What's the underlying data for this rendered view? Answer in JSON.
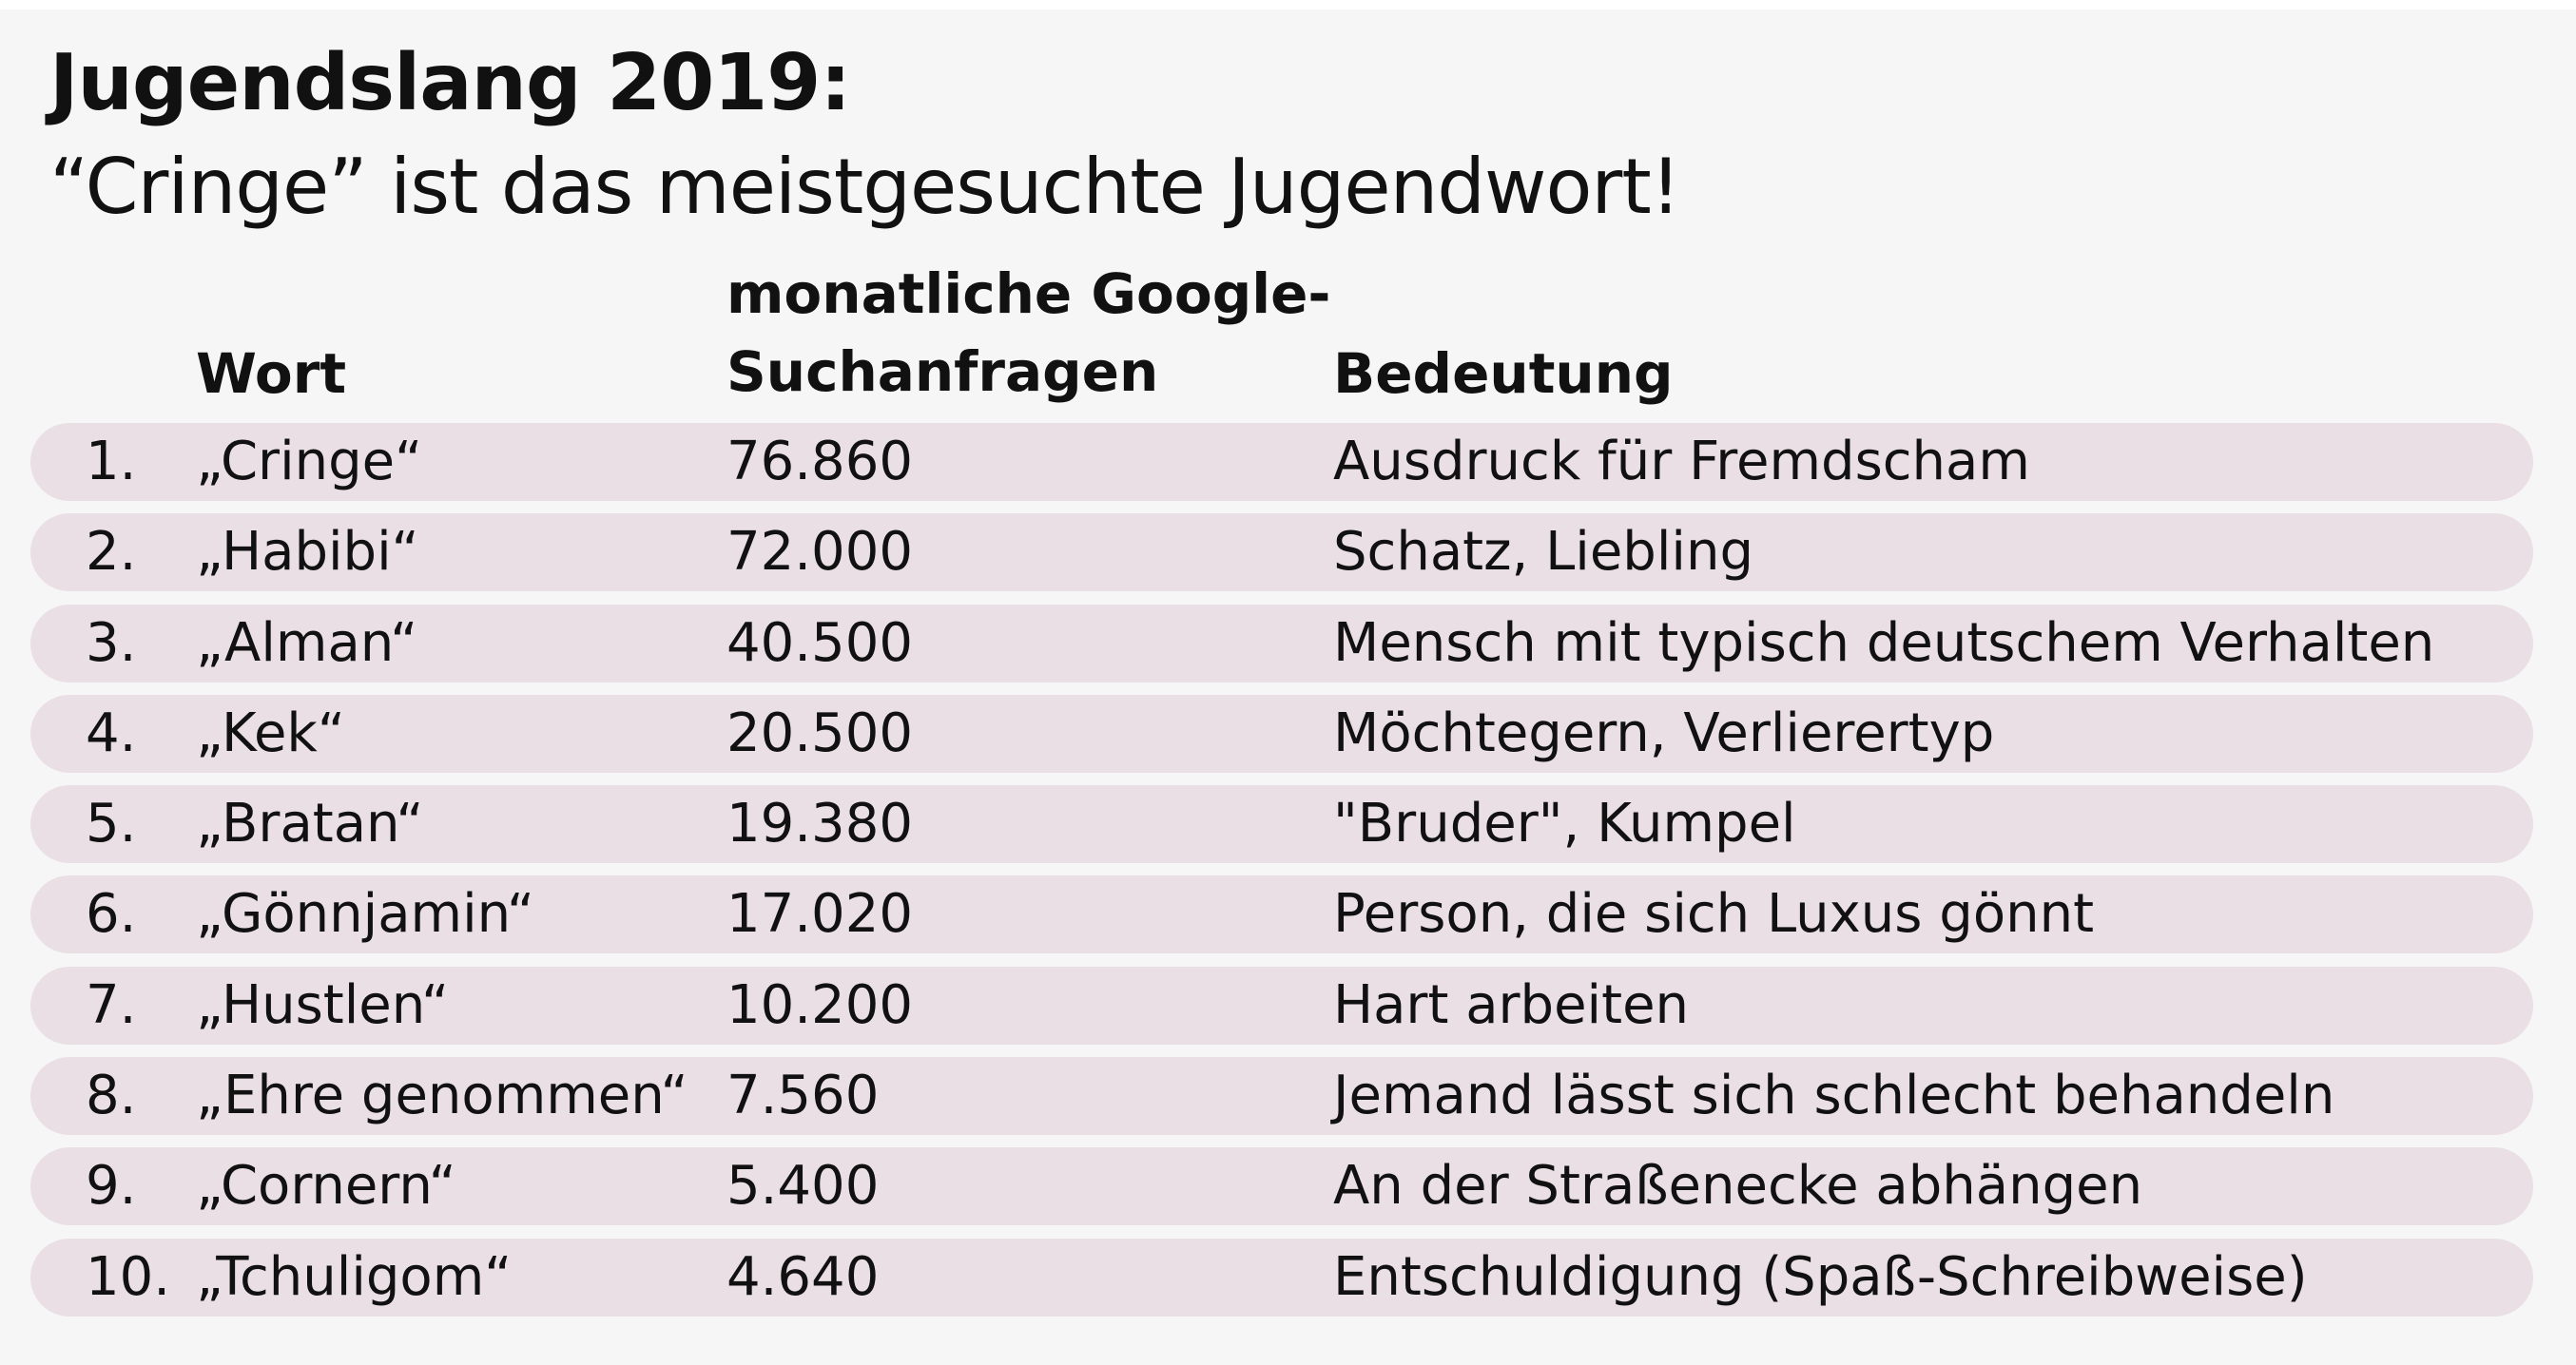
{
  "title": "Jugendslang 2019:",
  "subtitle": "“Cringe” ist das meistgesuchte Jugendwort!",
  "chart_data": {
    "type": "table",
    "columns": {
      "word": "Wort",
      "searches_line1": "monatliche Google-",
      "searches_line2": "Suchanfragen",
      "meaning": "Bedeutung"
    },
    "rows": [
      {
        "rank": "1.",
        "word": "„Cringe“",
        "value": "76.860",
        "meaning": "Ausdruck für Fremdscham"
      },
      {
        "rank": "2.",
        "word": "„Habibi“",
        "value": "72.000",
        "meaning": "Schatz, Liebling"
      },
      {
        "rank": "3.",
        "word": "„Alman“",
        "value": "40.500",
        "meaning": "Mensch mit typisch deutschem Verhalten"
      },
      {
        "rank": "4.",
        "word": "„Kek“",
        "value": "20.500",
        "meaning": "Möchtegern, Verlierertyp"
      },
      {
        "rank": "5.",
        "word": "„Bratan“",
        "value": "19.380",
        "meaning": "\"Bruder\", Kumpel"
      },
      {
        "rank": "6.",
        "word": "„Gönnjamin“",
        "value": "17.020",
        "meaning": "Person, die sich Luxus gönnt"
      },
      {
        "rank": "7.",
        "word": "„Hustlen“",
        "value": "10.200",
        "meaning": "Hart arbeiten"
      },
      {
        "rank": "8.",
        "word": "„Ehre genommen“",
        "value": "7.560",
        "meaning": "Jemand lässt sich schlecht behandeln"
      },
      {
        "rank": "9.",
        "word": "„Cornern“",
        "value": "5.400",
        "meaning": "An der Straßenecke abhängen"
      },
      {
        "rank": "10.",
        "word": "„Tchuligom“",
        "value": "4.640",
        "meaning": "Entschuldigung (Spaß-Schreibweise)"
      }
    ]
  },
  "colors": {
    "background": "#f7f6f6",
    "row_fill": "#eadfe4",
    "text": "#111111"
  }
}
